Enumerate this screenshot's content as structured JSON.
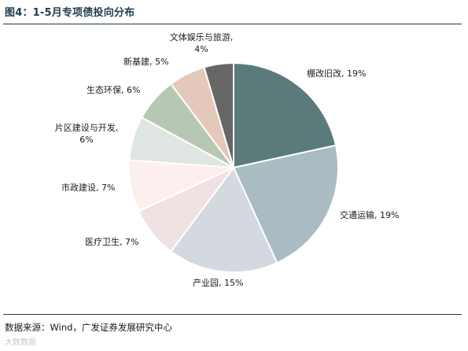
{
  "header": {
    "title": "图4：1-5月专项债投向分布"
  },
  "footer": {
    "source": "数据来源：Wind，广发证券发展研究中心",
    "watermark": "大数数据"
  },
  "chart_data": {
    "type": "pie",
    "title": "",
    "slices": [
      {
        "label": "棚改旧改",
        "value": 19,
        "text": "棚改旧改, 19%",
        "color": "#5a7b79"
      },
      {
        "label": "交通运输",
        "value": 19,
        "text": "交通运输, 19%",
        "color": "#a9bcc1"
      },
      {
        "label": "产业园",
        "value": 15,
        "text": "产业园, 15%",
        "color": "#d4d8df"
      },
      {
        "label": "医疗卫生",
        "value": 7,
        "text": "医疗卫生, 7%",
        "color": "#f0e2e2"
      },
      {
        "label": "市政建设",
        "value": 7,
        "text": "市政建设, 7%",
        "color": "#fcefee"
      },
      {
        "label": "片区建设与开发",
        "value": 6,
        "text": [
          "片区建设与开发,",
          "6%"
        ],
        "color": "#dfe5e1"
      },
      {
        "label": "生态环保",
        "value": 6,
        "text": "生态环保, 6%",
        "color": "#b6c8b3"
      },
      {
        "label": "新基建",
        "value": 5,
        "text": "新基建, 5%",
        "color": "#e4c8b9"
      },
      {
        "label": "文体娱乐与旅游",
        "value": 4,
        "text": [
          "文体娱乐与旅游,",
          "4%"
        ],
        "color": "#666666"
      }
    ]
  }
}
